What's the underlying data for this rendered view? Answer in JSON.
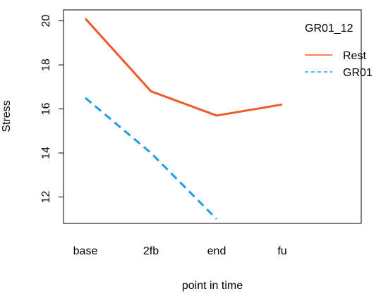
{
  "chart_data": {
    "type": "line",
    "title": "",
    "xlabel": "point in time",
    "ylabel": "Stress",
    "categories": [
      "base",
      "2fb",
      "end",
      "fu"
    ],
    "ylim": [
      10.8,
      20.5
    ],
    "yticks": [
      12,
      14,
      16,
      18,
      20
    ],
    "grid": false,
    "legend": {
      "title": "GR01_12",
      "placement": "top-right"
    },
    "series": [
      {
        "name": "Rest",
        "values": [
          20.1,
          16.8,
          15.7,
          16.2
        ],
        "color": "#f05a28",
        "dash": "solid"
      },
      {
        "name": "GR01",
        "values": [
          16.5,
          14.0,
          11.0,
          null
        ],
        "color": "#1a9fe8",
        "dash": "dashed"
      }
    ]
  }
}
